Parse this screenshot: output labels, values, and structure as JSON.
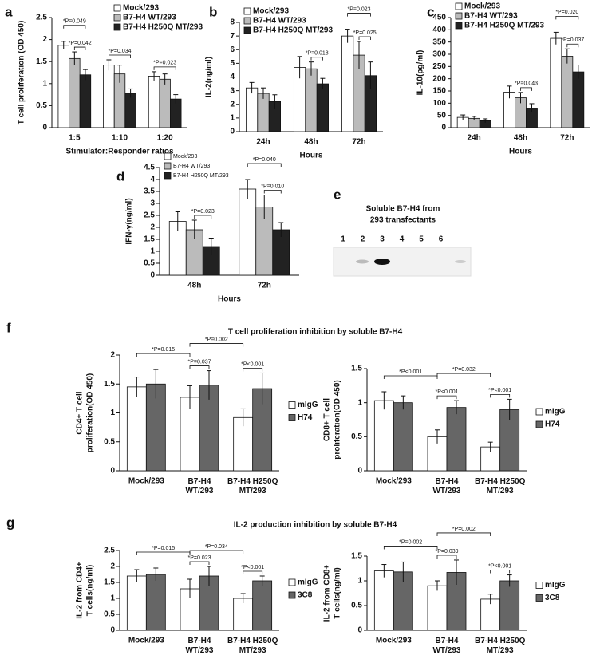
{
  "chart_data": [
    {
      "type": "bar",
      "label": "a",
      "ylabel": "T cell proliferation (OD 450)",
      "xlabel": "Stimulator:Responder ratios",
      "categories": [
        "1:5",
        "1:10",
        "1:20"
      ],
      "ylim": [
        0,
        2.5
      ],
      "yticks": [
        0,
        0.5,
        1,
        1.5,
        2,
        2.5
      ],
      "grid": false,
      "legend": "upper right",
      "series": [
        {
          "name": "Mock/293",
          "color": "#ffffff",
          "values": [
            1.87,
            1.42,
            1.17
          ],
          "errors": [
            0.09,
            0.12,
            0.1
          ]
        },
        {
          "name": "B7-H4 WT/293",
          "color": "#bbbbbb",
          "values": [
            1.57,
            1.22,
            1.1
          ],
          "errors": [
            0.15,
            0.2,
            0.12
          ]
        },
        {
          "name": "B7-H4 H250Q MT/293",
          "color": "#222222",
          "values": [
            1.2,
            0.78,
            0.65
          ],
          "errors": [
            0.12,
            0.1,
            0.1
          ]
        }
      ],
      "annotations": [
        "*P=0.049",
        "*P=0.042",
        "*P=0.034",
        "*P=0.023"
      ]
    },
    {
      "type": "bar",
      "label": "b",
      "ylabel": "IL-2(ng/ml)",
      "xlabel": "Hours",
      "categories": [
        "24h",
        "48h",
        "72h"
      ],
      "ylim": [
        0,
        8
      ],
      "yticks": [
        0,
        1,
        2,
        3,
        4,
        5,
        6,
        7,
        8
      ],
      "grid": false,
      "legend": "upper left",
      "series": [
        {
          "name": "Mock/293",
          "color": "#ffffff",
          "values": [
            3.2,
            4.7,
            7.0
          ],
          "errors": [
            0.4,
            0.8,
            0.5
          ]
        },
        {
          "name": "B7-H4 WT/293",
          "color": "#bbbbbb",
          "values": [
            2.8,
            4.6,
            5.6
          ],
          "errors": [
            0.4,
            0.5,
            1.0
          ]
        },
        {
          "name": "B7-H4 H250Q MT/293",
          "color": "#222222",
          "values": [
            2.2,
            3.5,
            4.1
          ],
          "errors": [
            0.5,
            0.4,
            1.0
          ]
        }
      ],
      "annotations": [
        "*P=0.023",
        "*P=0.018",
        "*P=0.025"
      ]
    },
    {
      "type": "bar",
      "label": "c",
      "ylabel": "IL-10(pg/ml)",
      "xlabel": "Hours",
      "categories": [
        "24h",
        "48h",
        "72h"
      ],
      "ylim": [
        0,
        450
      ],
      "yticks": [
        0,
        50,
        100,
        150,
        200,
        250,
        300,
        350,
        400,
        450
      ],
      "grid": false,
      "legend": "upper left",
      "series": [
        {
          "name": "Mock/293",
          "color": "#ffffff",
          "values": [
            42,
            145,
            365
          ],
          "errors": [
            10,
            25,
            25
          ]
        },
        {
          "name": "B7-H4 WT/293",
          "color": "#bbbbbb",
          "values": [
            38,
            122,
            292
          ],
          "errors": [
            8,
            22,
            30
          ]
        },
        {
          "name": "B7-H4 H250Q MT/293",
          "color": "#222222",
          "values": [
            28,
            80,
            228
          ],
          "errors": [
            8,
            18,
            28
          ]
        }
      ],
      "annotations": [
        "*P=0.020",
        "*P=0.043",
        "*P=0.037"
      ]
    },
    {
      "type": "bar",
      "label": "d",
      "ylabel": "IFN-γ(ng/ml)",
      "xlabel": "Hours",
      "categories": [
        "48h",
        "72h"
      ],
      "ylim": [
        0,
        4.5
      ],
      "yticks": [
        0,
        0.5,
        1,
        1.5,
        2,
        2.5,
        3,
        3.5,
        4,
        4.5
      ],
      "grid": false,
      "legend": "upper left",
      "series": [
        {
          "name": "Mock/293",
          "color": "#ffffff",
          "values": [
            2.25,
            3.6
          ],
          "errors": [
            0.4,
            0.4
          ]
        },
        {
          "name": "B7-H4 WT/293",
          "color": "#bbbbbb",
          "values": [
            1.9,
            2.85
          ],
          "errors": [
            0.4,
            0.5
          ]
        },
        {
          "name": "B7-H4 H250Q MT/293",
          "color": "#222222",
          "values": [
            1.2,
            1.9
          ],
          "errors": [
            0.35,
            0.3
          ]
        }
      ],
      "annotations": [
        "*P=0.023",
        "*P=0.040",
        "*P=0.010"
      ]
    },
    {
      "type": "bar",
      "ylabel": [
        "CD4+ T cell",
        "proliferation(OD 450)"
      ],
      "categories": [
        "Mock/293",
        "B7-H4 WT/293",
        "B7-H4 H250Q MT/293"
      ],
      "ylim": [
        0,
        2
      ],
      "yticks": [
        0,
        0.5,
        1,
        1.5,
        2
      ],
      "grid": false,
      "legend": "right",
      "series": [
        {
          "name": "mIgG",
          "color": "#ffffff",
          "values": [
            1.45,
            1.27,
            0.92
          ],
          "errors": [
            0.17,
            0.2,
            0.15
          ]
        },
        {
          "name": "H74",
          "color": "#666666",
          "values": [
            1.5,
            1.48,
            1.42
          ],
          "errors": [
            0.25,
            0.25,
            0.27
          ]
        }
      ],
      "annotations": [
        "*P=0.015",
        "*P=0.002",
        "*P=0.037",
        "*P<0.001"
      ]
    },
    {
      "type": "bar",
      "ylabel": [
        "CD8+ T cell",
        "proliferation(OD 450)"
      ],
      "categories": [
        "Mock/293",
        "B7-H4 WT/293",
        "B7-H4 H250Q MT/293"
      ],
      "ylim": [
        0,
        1.5
      ],
      "yticks": [
        0,
        0.5,
        1,
        1.5
      ],
      "grid": false,
      "legend": "right",
      "series": [
        {
          "name": "mIgG",
          "color": "#ffffff",
          "values": [
            1.03,
            0.5,
            0.35
          ],
          "errors": [
            0.13,
            0.1,
            0.07
          ]
        },
        {
          "name": "H74",
          "color": "#666666",
          "values": [
            1.0,
            0.93,
            0.9
          ],
          "errors": [
            0.1,
            0.1,
            0.15
          ]
        }
      ],
      "annotations": [
        "*P<0.001",
        "*P=0.032",
        "*P<0.001",
        "*P<0.001"
      ]
    },
    {
      "type": "bar",
      "ylabel": [
        "IL-2 from CD4+",
        "T cells(ng/ml)"
      ],
      "categories": [
        "Mock/293",
        "B7-H4 WT/293",
        "B7-H4 H250Q MT/293"
      ],
      "ylim": [
        0,
        2.5
      ],
      "yticks": [
        0,
        0.5,
        1,
        1.5,
        2,
        2.5
      ],
      "grid": false,
      "legend": "right",
      "series": [
        {
          "name": "mIgG",
          "color": "#ffffff",
          "values": [
            1.7,
            1.3,
            1.0
          ],
          "errors": [
            0.2,
            0.3,
            0.15
          ]
        },
        {
          "name": "3C8",
          "color": "#666666",
          "values": [
            1.75,
            1.7,
            1.55
          ],
          "errors": [
            0.2,
            0.3,
            0.15
          ]
        }
      ],
      "annotations": [
        "*P=0.015",
        "*P=0.034",
        "*P=0.023",
        "*P<0.001"
      ]
    },
    {
      "type": "bar",
      "ylabel": [
        "IL-2 from CD8+",
        "T cells(ng/ml)"
      ],
      "categories": [
        "Mock/293",
        "B7-H4 WT/293",
        "B7-H4 H250Q MT/293"
      ],
      "ylim": [
        0,
        1.5
      ],
      "yticks": [
        0,
        0.5,
        1,
        1.5
      ],
      "grid": false,
      "legend": "right",
      "series": [
        {
          "name": "mIgG",
          "color": "#ffffff",
          "values": [
            1.2,
            0.9,
            0.63
          ],
          "errors": [
            0.13,
            0.1,
            0.1
          ]
        },
        {
          "name": "3C8",
          "color": "#666666",
          "values": [
            1.18,
            1.17,
            1.0
          ],
          "errors": [
            0.2,
            0.25,
            0.12
          ]
        }
      ],
      "annotations": [
        "*P=0.002",
        "*P=0.002",
        "*P=0.039",
        "*P<0.001"
      ]
    }
  ],
  "blot": {
    "label": "e",
    "title": [
      "Soluble B7-H4 from",
      "293 transfectants"
    ],
    "lanes": [
      "1",
      "2",
      "3",
      "4",
      "5",
      "6"
    ]
  },
  "sections": [
    {
      "label": "f",
      "title": "T cell proliferation inhibition by soluble B7-H4"
    },
    {
      "label": "g",
      "title": "IL-2 production inhibition by soluble B7-H4"
    }
  ]
}
